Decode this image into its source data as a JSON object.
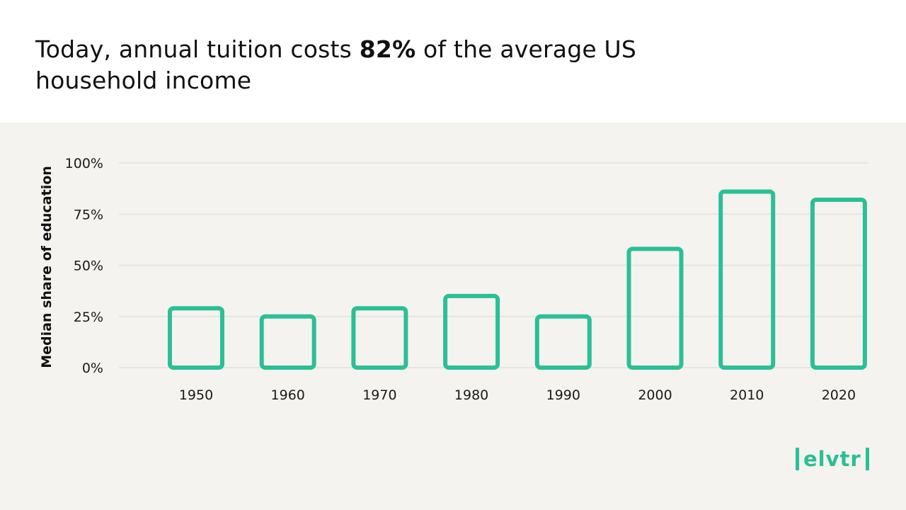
{
  "title": {
    "before": "Today, annual tuition costs ",
    "highlight": "82%",
    "after": " of the average US household income"
  },
  "logo": {
    "text": "elvtr"
  },
  "colors": {
    "bar_stroke": "#2bbf95",
    "panel_background": "#f4f3f0",
    "gridline": "#e6e5e1"
  },
  "chart_data": {
    "type": "bar",
    "style": "outlined",
    "title": "Today, annual tuition costs 82% of the average US household income",
    "xlabel": "",
    "ylabel": "Median share of education",
    "categories": [
      "1950",
      "1960",
      "1970",
      "1980",
      "1990",
      "2000",
      "2010",
      "2020"
    ],
    "values": [
      29,
      25,
      29,
      35,
      25,
      58,
      86,
      82
    ],
    "ylim": [
      0,
      100
    ],
    "yticks": [
      0,
      25,
      50,
      75,
      100
    ],
    "ytick_labels": [
      "0%",
      "25%",
      "50%",
      "75%",
      "100%"
    ],
    "grid": true,
    "legend": "none"
  }
}
